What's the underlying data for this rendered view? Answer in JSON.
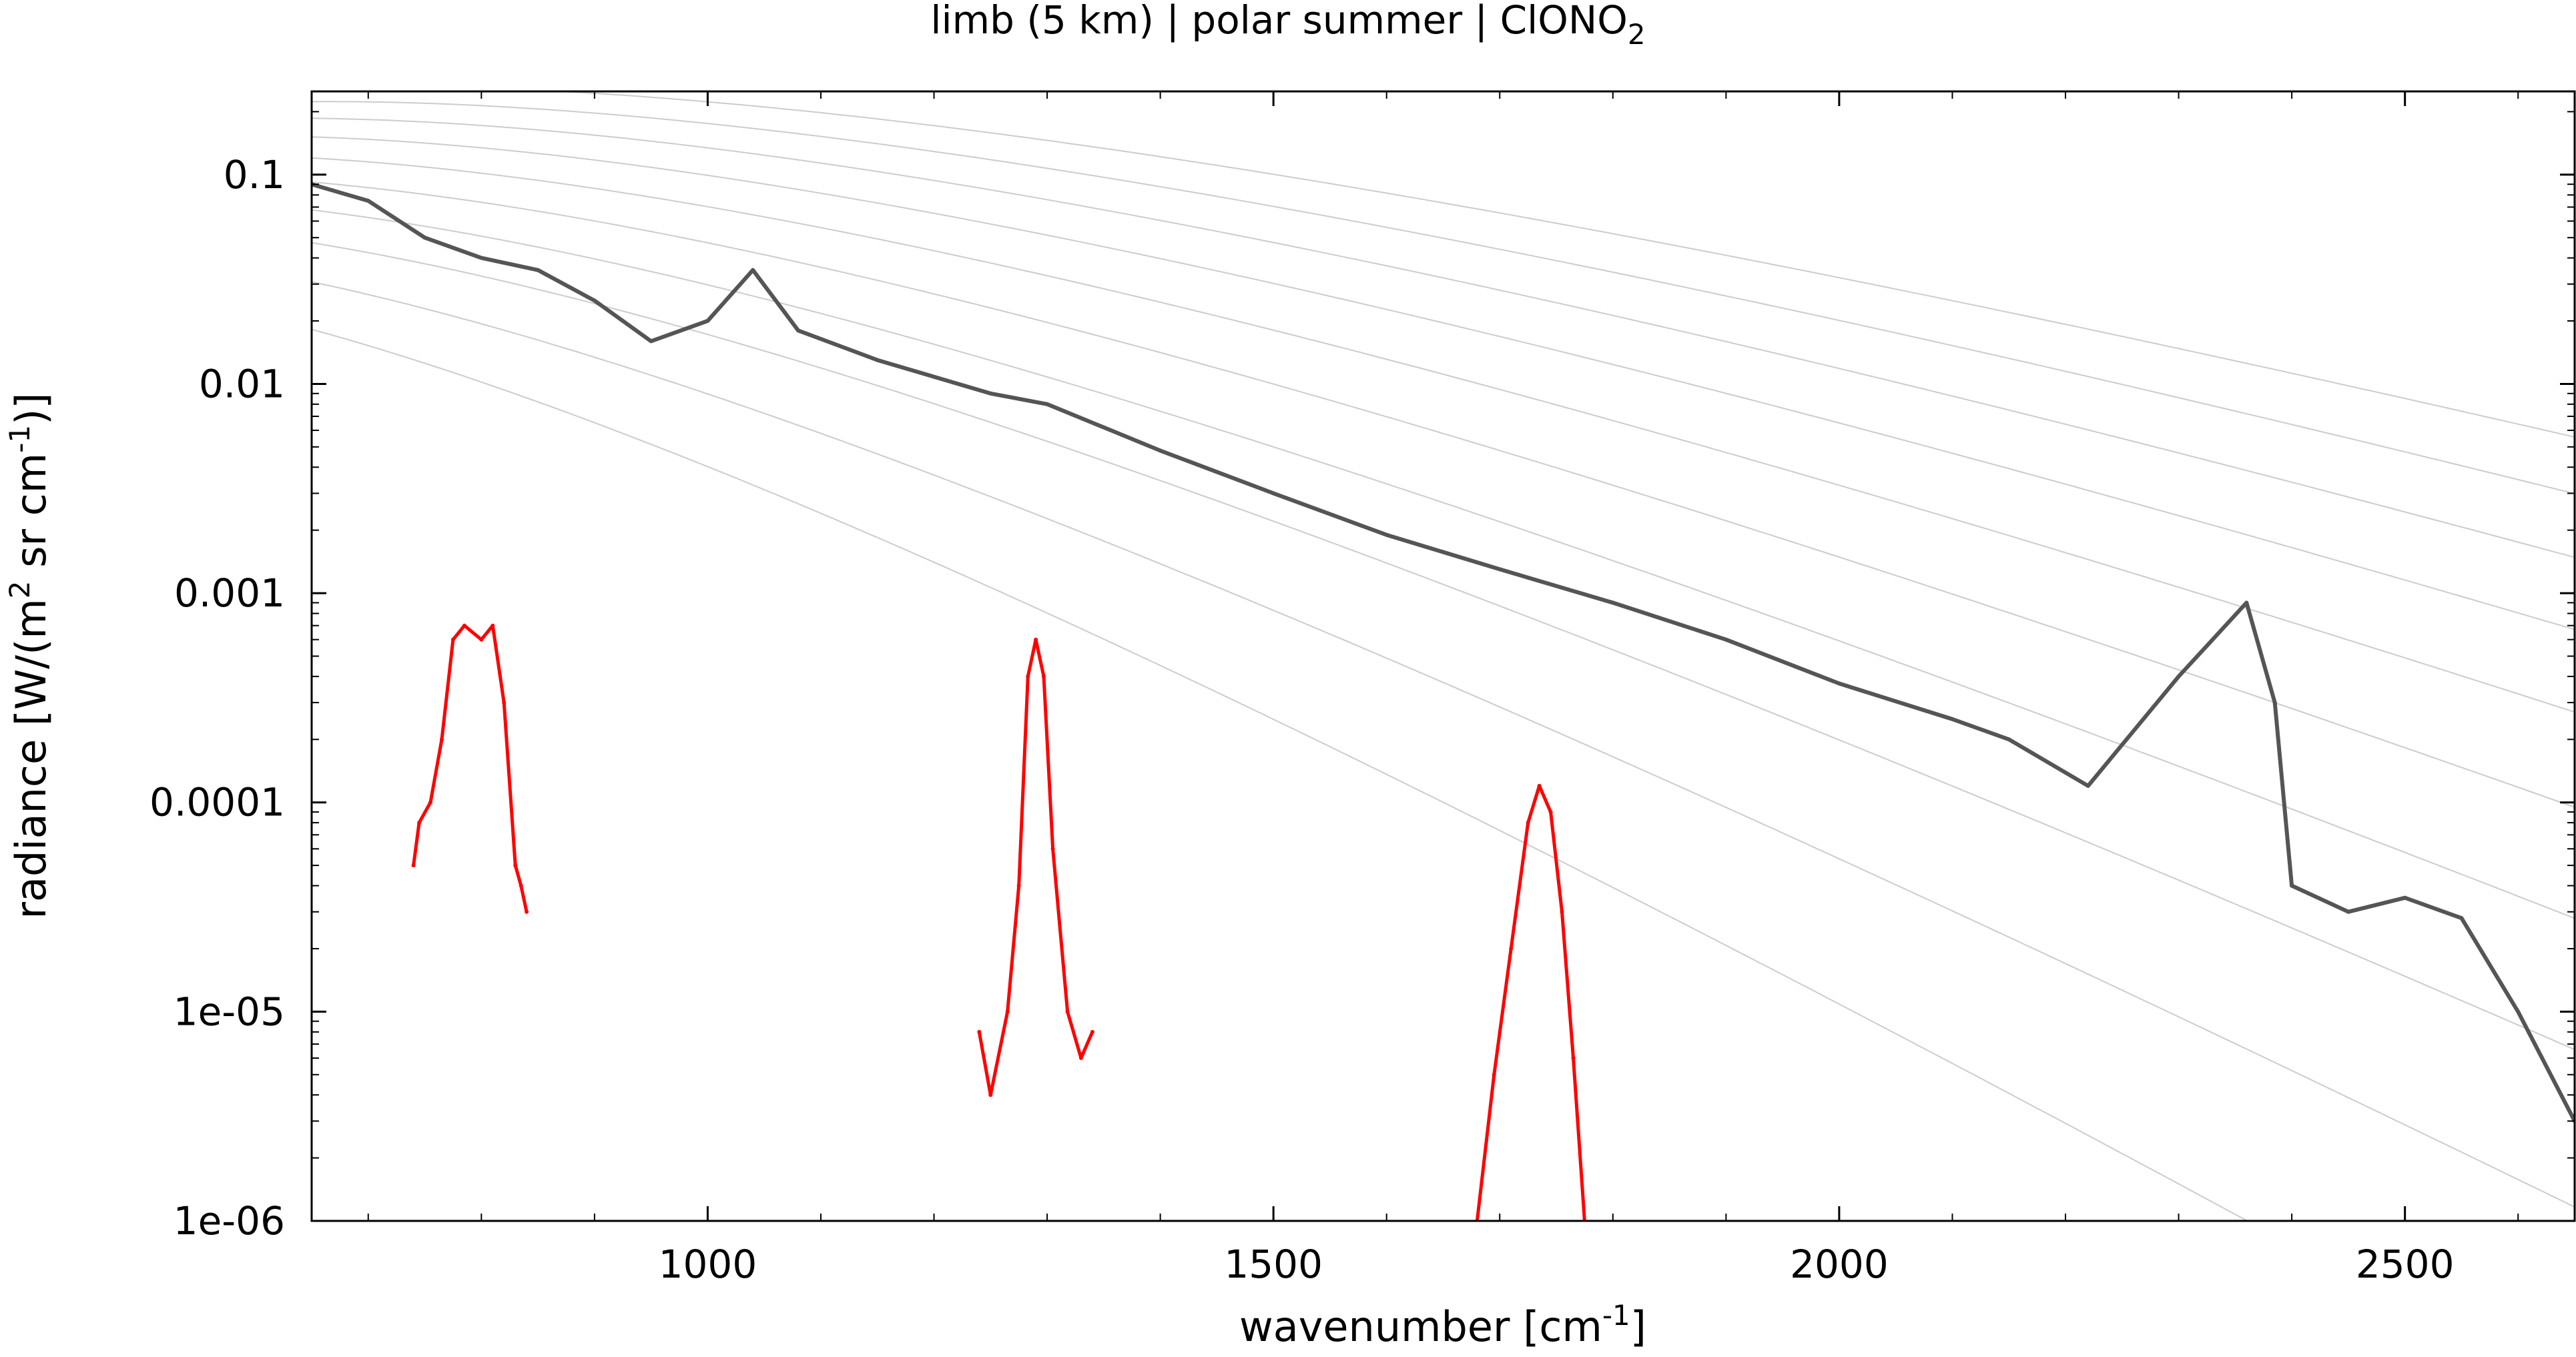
{
  "chart_data": {
    "type": "line",
    "title_parts": {
      "main": "limb (5 km) | polar summer | ClONO",
      "sub": "2"
    },
    "xlabel_parts": {
      "main": "wavenumber [cm",
      "sup": "-1",
      "end": "]"
    },
    "ylabel_parts": {
      "a": "radiance [W/(m",
      "sup1": "2",
      "b": " sr cm",
      "sup2": "-1",
      "c": ")]"
    },
    "x_ticks": [
      1000,
      1500,
      2000,
      2500
    ],
    "x_tick_labels": [
      "1000",
      "1500",
      "2000",
      "2500"
    ],
    "y_ticks": [
      0.1,
      0.01,
      0.001,
      0.0001,
      1e-05,
      1e-06
    ],
    "y_tick_labels": [
      "0.1",
      "0.01",
      "0.001",
      "0.0001",
      "1e-05",
      "1e-06"
    ],
    "xlim": [
      650,
      2650
    ],
    "ylim": [
      1e-06,
      0.25
    ],
    "y_scale": "log",
    "grid": false,
    "colors": {
      "total": "#555555",
      "gas": "#ff0000",
      "planck": "#cccccc",
      "axes": "#000000"
    },
    "series": [
      {
        "role": "total",
        "x": [
          650,
          700,
          750,
          800,
          850,
          900,
          950,
          1000,
          1040,
          1080,
          1150,
          1250,
          1300,
          1400,
          1500,
          1600,
          1700,
          1800,
          1900,
          2000,
          2100,
          2150,
          2220,
          2300,
          2360,
          2385,
          2400,
          2450,
          2500,
          2550,
          2600,
          2650
        ],
        "y": [
          0.09,
          0.075,
          0.05,
          0.04,
          0.035,
          0.025,
          0.016,
          0.02,
          0.035,
          0.018,
          0.013,
          0.009,
          0.008,
          0.0048,
          0.003,
          0.0019,
          0.0013,
          0.0009,
          0.0006,
          0.00037,
          0.00025,
          0.0002,
          0.00012,
          0.0004,
          0.0009,
          0.0003,
          4e-05,
          3e-05,
          3.5e-05,
          2.8e-05,
          1e-05,
          3e-06
        ]
      },
      {
        "role": "ClONO2",
        "segments": [
          {
            "x": [
              740,
              745,
              755,
              765,
              775,
              785,
              800,
              810,
              820,
              830,
              835,
              840
            ],
            "y": [
              5e-05,
              8e-05,
              0.0001,
              0.0002,
              0.0006,
              0.0007,
              0.0006,
              0.0007,
              0.0003,
              5e-05,
              4e-05,
              3e-05
            ]
          },
          {
            "x": [
              1240,
              1250,
              1265,
              1275,
              1283,
              1290,
              1297,
              1305,
              1318,
              1330,
              1340
            ],
            "y": [
              8e-06,
              4e-06,
              1e-05,
              4e-05,
              0.0004,
              0.0006,
              0.0004,
              6e-05,
              1e-05,
              6e-06,
              8e-06
            ]
          },
          {
            "x": [
              1680,
              1695,
              1710,
              1725,
              1735,
              1745,
              1755,
              1765,
              1775
            ],
            "y": [
              1e-06,
              5e-06,
              2e-05,
              8e-05,
              0.00012,
              9e-05,
              3e-05,
              6e-06,
              1e-06
            ]
          }
        ]
      }
    ]
  }
}
